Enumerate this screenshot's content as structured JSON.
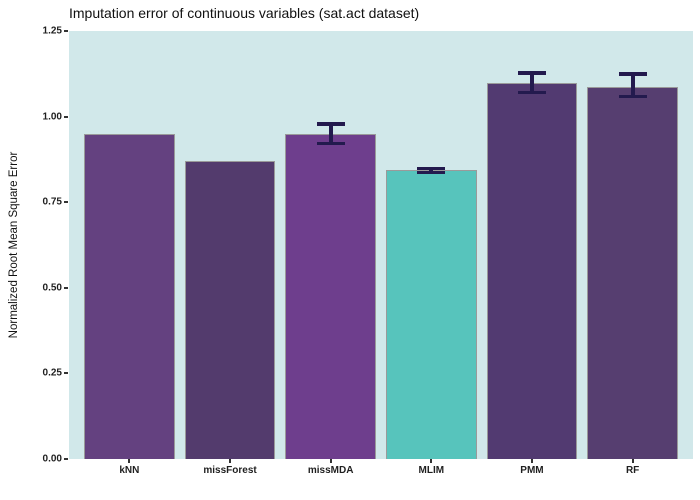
{
  "title": "Imputation error of continuous variables (sat.act dataset)",
  "ylabel": "Normalized Root Mean Square Error",
  "chart_data": {
    "type": "bar",
    "title": "Imputation error of continuous variables (sat.act dataset)",
    "xlabel": "",
    "ylabel": "Normalized Root Mean Square Error",
    "categories": [
      "kNN",
      "missForest",
      "missMDA",
      "MLIM",
      "PMM",
      "RF"
    ],
    "values": [
      0.949,
      0.87,
      0.948,
      0.844,
      1.098,
      1.086
    ],
    "error_bars": [
      null,
      null,
      {
        "ymin": 0.917,
        "ymax": 0.983
      },
      {
        "ymin": 0.832,
        "ymax": 0.854
      },
      {
        "ymin": 1.066,
        "ymax": 1.132
      },
      {
        "ymin": 1.054,
        "ymax": 1.13
      }
    ],
    "bar_colors": [
      "#644180",
      "#533b6d",
      "#6e3e8d",
      "#57c4bc",
      "#523a71",
      "#563e70"
    ],
    "bar_border_color": "#9a9a9a",
    "errorbar_color": "#231a4e",
    "panel_background": "#d1e8ea",
    "outer_background": "#ffffff",
    "ylim": [
      0,
      1.25
    ],
    "yticks": [
      "0.00",
      "0.25",
      "0.50",
      "0.75",
      "1.00",
      "1.25"
    ],
    "grid": false,
    "legend": "none"
  }
}
